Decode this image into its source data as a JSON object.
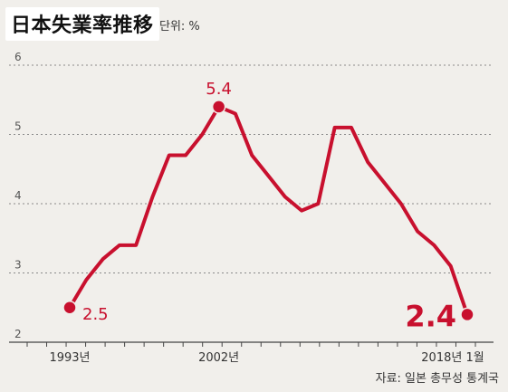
{
  "header": {
    "title": "日本失業率推移",
    "unit": "단위: %"
  },
  "source": "자료: 일본 총무성 통계국",
  "colors": {
    "line": "#c8102e",
    "background": "#f1efeb",
    "grid": "#8a8a8a"
  },
  "chart_data": {
    "type": "line",
    "title": "日本失業率推移",
    "xlabel": "",
    "ylabel": "단위: %",
    "ylim": [
      2,
      6
    ],
    "yticks": [
      "2",
      "3",
      "4",
      "5",
      "6"
    ],
    "grid": true,
    "x_tick_labels": [
      "1993년",
      "2002년",
      "2018년 1월"
    ],
    "series": [
      {
        "values": [
          2.5,
          2.9,
          3.2,
          3.4,
          3.4,
          4.1,
          4.7,
          4.7,
          5.0,
          5.4,
          5.3,
          4.7,
          4.4,
          4.1,
          3.9,
          4.0,
          5.1,
          5.1,
          4.6,
          4.3,
          4.0,
          3.6,
          3.4,
          3.1,
          2.4
        ]
      }
    ],
    "annotations": [
      {
        "label": "2.5",
        "index": 0
      },
      {
        "label": "5.4",
        "index": 9
      },
      {
        "label": "2.4",
        "index": 24
      }
    ]
  }
}
